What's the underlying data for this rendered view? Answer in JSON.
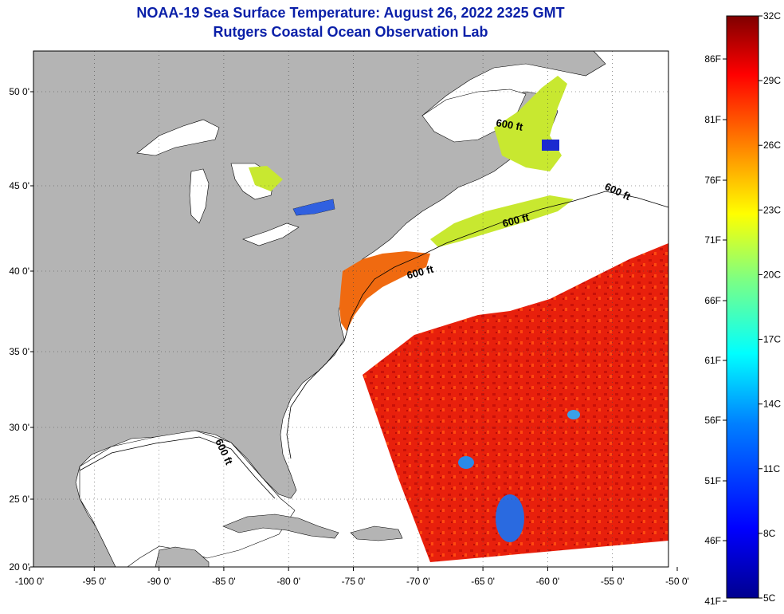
{
  "title": {
    "line1": "NOAA-19 Sea Surface Temperature:  August 26, 2022 2325 GMT",
    "line2": "Rutgers Coastal Ocean Observation Lab"
  },
  "map": {
    "lon_ticks": [
      "-100 0'",
      "-95 0'",
      "-90 0'",
      "-85 0'",
      "-80 0'",
      "-75 0'",
      "-70 0'",
      "-65 0'",
      "-60 0'",
      "-55 0'",
      "-50 0'"
    ],
    "lat_ticks": [
      "50 0'",
      "45 0'",
      "40 0'",
      "35 0'",
      "30 0'",
      "25 0'",
      "20 0'"
    ],
    "contour_labels": [
      "600 ft",
      "600 ft",
      "600 ft",
      "600 ft",
      "600 ft"
    ],
    "land_color": "#b4b4b4",
    "cloud_color": "#ffffff"
  },
  "colorbar": {
    "celsius_labels": [
      "32C",
      "29C",
      "26C",
      "23C",
      "20C",
      "17C",
      "14C",
      "11C",
      "8C",
      "5C"
    ],
    "fahrenheit_labels": [
      "86F",
      "81F",
      "76F",
      "71F",
      "66F",
      "61F",
      "56F",
      "51F",
      "46F",
      "41F"
    ],
    "colors": [
      "#7f0000",
      "#ff0000",
      "#ff8000",
      "#ffff00",
      "#80ff80",
      "#00ffff",
      "#0080ff",
      "#0000ff",
      "#00008f"
    ]
  }
}
